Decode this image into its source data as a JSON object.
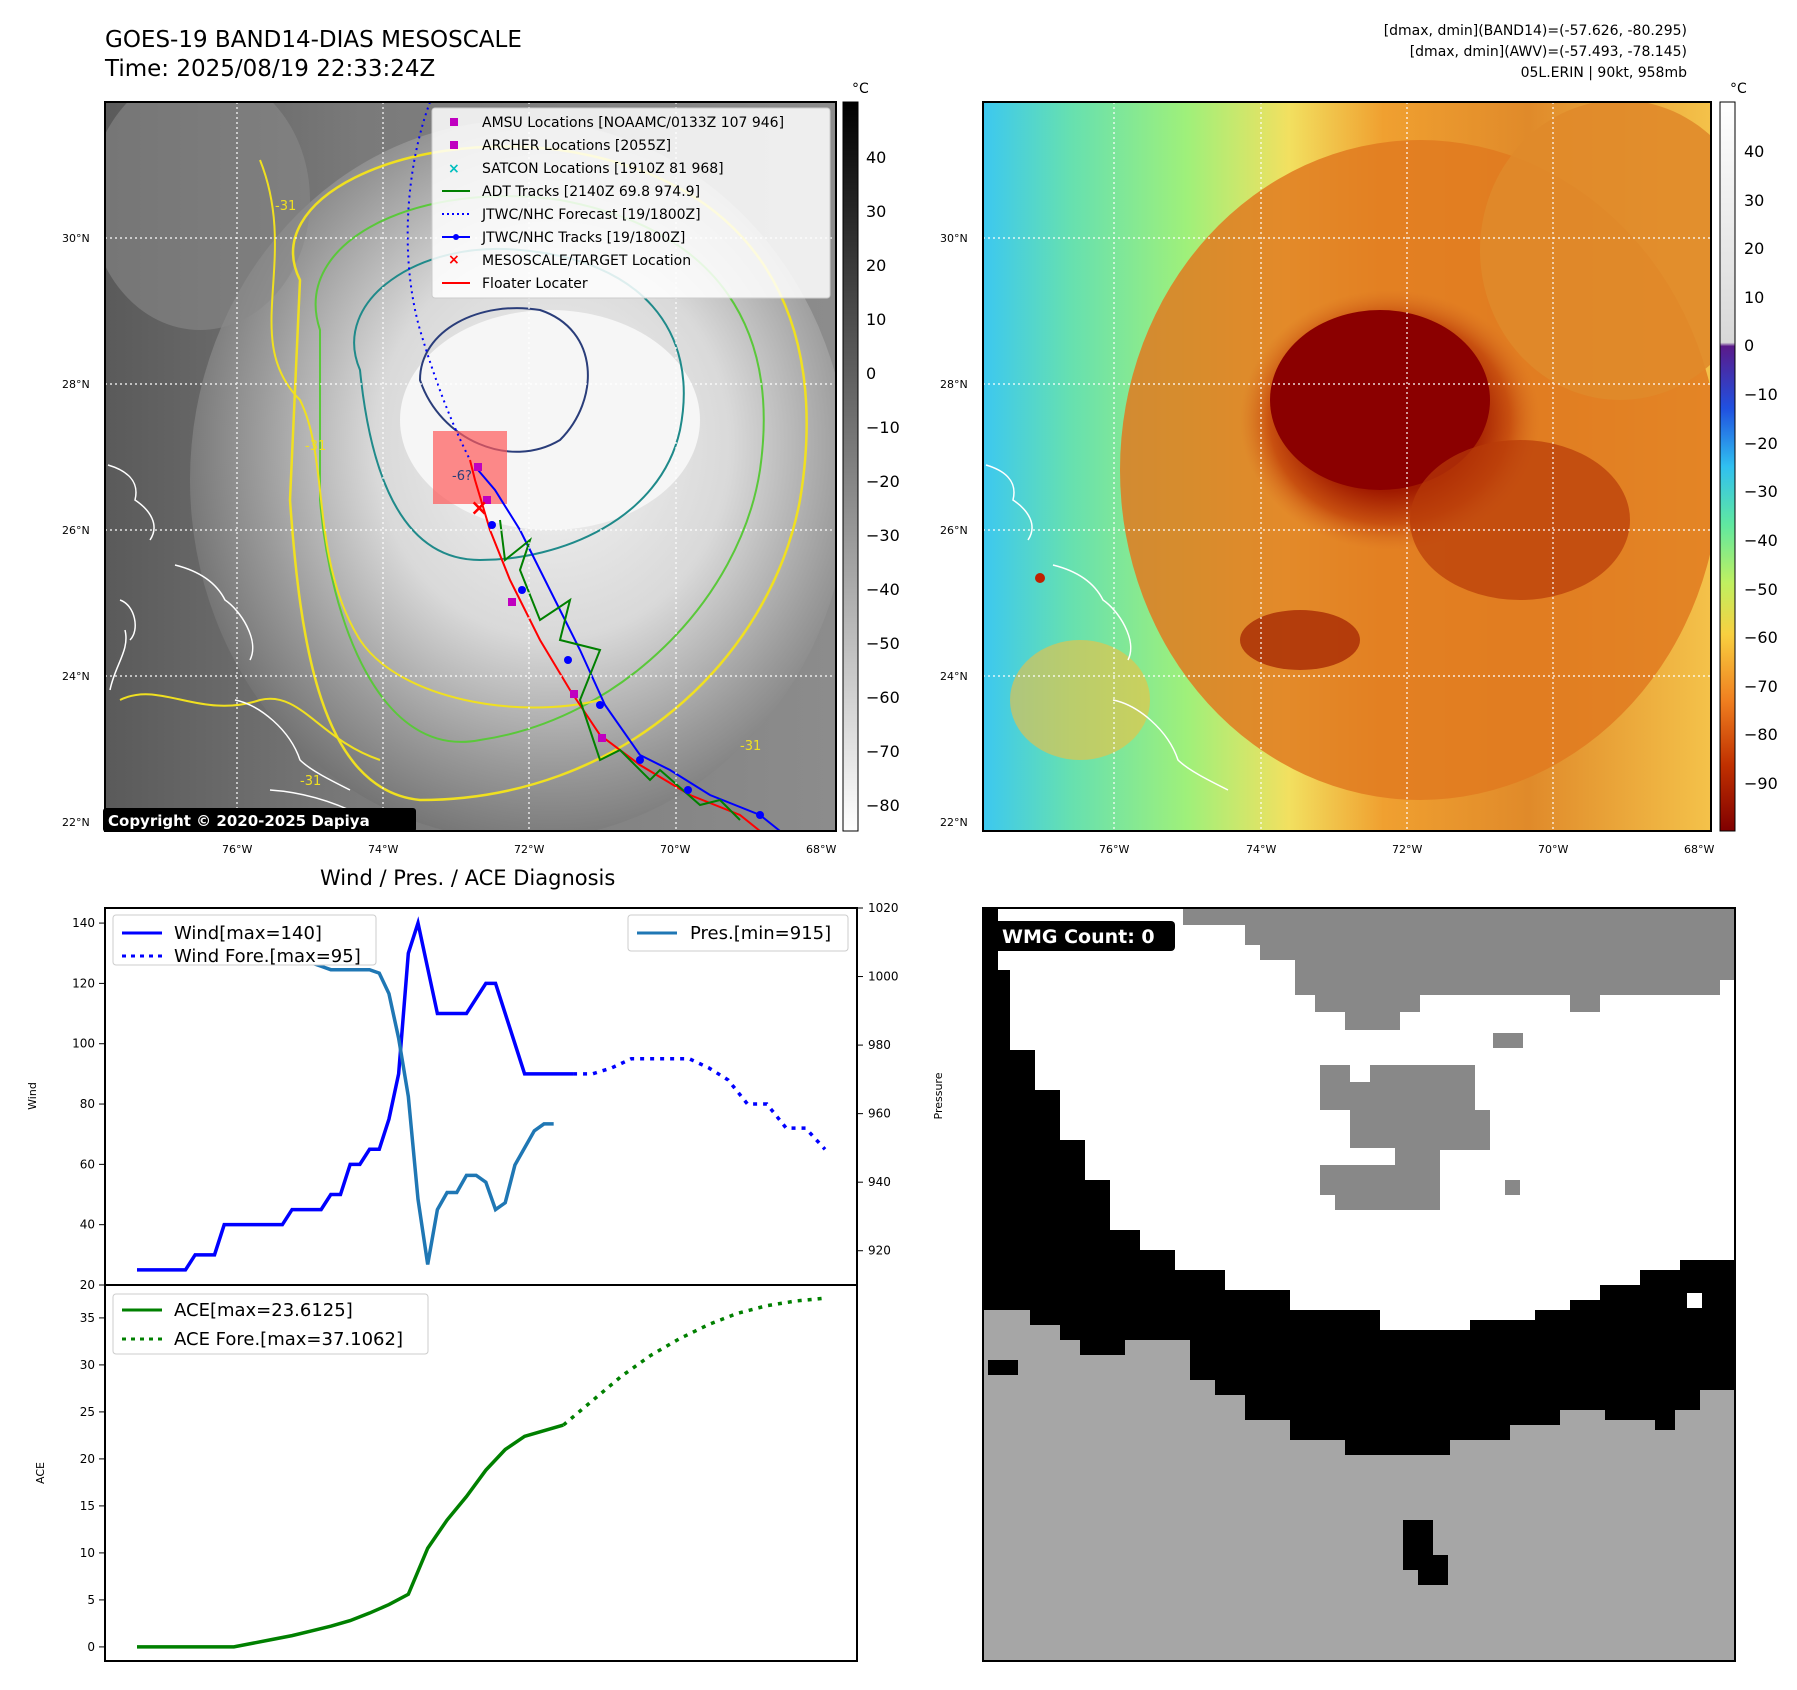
{
  "header": {
    "title": "GOES-19 BAND14-DIAS MESOSCALE",
    "time": "Time: 2025/08/19 22:33:24Z",
    "dmax_band14": "[dmax, dmin](BAND14)=(-57.626, -80.295)",
    "dmax_awv": "[dmax, dmin](AWV)=(-57.493, -78.145)",
    "storm": "05L.ERIN | 90kt, 958mb"
  },
  "map": {
    "lat_labels": [
      "30°N",
      "28°N",
      "26°N",
      "24°N",
      "22°N"
    ],
    "lon_labels": [
      "76°W",
      "74°W",
      "72°W",
      "70°W",
      "68°W"
    ],
    "copyright": "Copyright © 2020-2025 Dapiya",
    "colorbar_unit": "°C",
    "colorbar1_ticks": [
      "40",
      "30",
      "20",
      "10",
      "0",
      "−10",
      "−20",
      "−30",
      "−40",
      "−50",
      "−60",
      "−70",
      "−80"
    ],
    "colorbar2_ticks": [
      "40",
      "30",
      "20",
      "10",
      "0",
      "−10",
      "−20",
      "−30",
      "−40",
      "−50",
      "−60",
      "−70",
      "−80",
      "−90"
    ],
    "legend": [
      {
        "label": "AMSU Locations [NOAAMC/0133Z 107 946]",
        "color": "#c000c0",
        "marker": "square"
      },
      {
        "label": "ARCHER Locations [2055Z]",
        "color": "#c000c0",
        "marker": "square"
      },
      {
        "label": "SATCON Locations [1910Z 81 968]",
        "color": "#00bfbf",
        "marker": "x"
      },
      {
        "label": "ADT Tracks [2140Z 69.8 974.9]",
        "color": "#008000",
        "marker": "line"
      },
      {
        "label": "JTWC/NHC Forecast [19/1800Z]",
        "color": "#0000ff",
        "marker": "dotted"
      },
      {
        "label": "JTWC/NHC Tracks [19/1800Z]",
        "color": "#0000ff",
        "marker": "line-dot"
      },
      {
        "label": "MESOSCALE/TARGET Location",
        "color": "#ff0000",
        "marker": "x"
      },
      {
        "label": "Floater Locater",
        "color": "#ff0000",
        "marker": "line"
      }
    ],
    "contour_labels": [
      "-31",
      "-31",
      "-31",
      "-6?",
      "-31"
    ]
  },
  "wind_chart_title": "Wind / Pres. / ACE Diagnosis",
  "wmg": {
    "label": "WMG Count: 0"
  },
  "chart_data": [
    {
      "type": "line",
      "ylabel": "Wind",
      "ylabel_right": "Pressure",
      "ylim": [
        20,
        145
      ],
      "y2lim": [
        910,
        1020
      ],
      "yticks": [
        "140",
        "120",
        "100",
        "80",
        "60",
        "40",
        "20"
      ],
      "y2ticks": [
        "1020",
        "1000",
        "980",
        "960",
        "940",
        "920"
      ],
      "series": [
        {
          "name": "Wind[max=140]",
          "color": "#0000ff",
          "style": "solid",
          "x": [
            0,
            1,
            2,
            3,
            4,
            5,
            6,
            7,
            8,
            9,
            10,
            11,
            12,
            13,
            14,
            15,
            16,
            17,
            18,
            19,
            20,
            21,
            22,
            23,
            24,
            25,
            26,
            27,
            28,
            29,
            30,
            31,
            32,
            33,
            34,
            35,
            36,
            37,
            38,
            39,
            40,
            41,
            42,
            43,
            44,
            45
          ],
          "values": [
            25,
            25,
            25,
            25,
            25,
            25,
            30,
            30,
            30,
            40,
            40,
            40,
            40,
            40,
            40,
            40,
            45,
            45,
            45,
            45,
            50,
            50,
            60,
            60,
            65,
            65,
            75,
            90,
            130,
            140,
            125,
            110,
            110,
            110,
            110,
            115,
            120,
            120,
            110,
            100,
            90,
            90,
            90,
            90,
            90,
            90
          ]
        },
        {
          "name": "Wind Fore.[max=95]",
          "color": "#0000ff",
          "style": "dotted",
          "x": [
            45,
            47,
            49,
            51,
            53,
            55,
            57,
            59,
            61,
            63,
            65,
            67,
            69,
            71
          ],
          "values": [
            90,
            90,
            92,
            95,
            95,
            95,
            95,
            92,
            88,
            80,
            80,
            72,
            72,
            65
          ]
        },
        {
          "name": "Pres.[min=915]",
          "color": "#1f77b4",
          "style": "solid",
          "x": [
            0,
            1,
            2,
            3,
            4,
            5,
            6,
            7,
            8,
            9,
            10,
            11,
            12,
            13,
            14,
            15,
            16,
            17,
            18,
            19,
            20,
            21,
            22,
            23,
            24,
            25,
            26,
            27,
            28,
            29,
            30,
            31,
            32,
            33,
            34,
            35,
            36,
            37,
            38,
            39,
            40,
            41,
            42,
            43
          ],
          "values": [
            1015,
            1015,
            1011,
            1010,
            1009,
            1009,
            1009,
            1009,
            1008,
            1008,
            1007,
            1007,
            1006,
            1006,
            1005,
            1005,
            1005,
            1005,
            1004,
            1003,
            1002,
            1002,
            1002,
            1002,
            1002,
            1001,
            995,
            982,
            965,
            935,
            916,
            932,
            937,
            937,
            942,
            942,
            940,
            932,
            934,
            945,
            950,
            955,
            957,
            957
          ]
        }
      ]
    },
    {
      "type": "line",
      "ylabel": "ACE",
      "ylim": [
        -1.5,
        38.5
      ],
      "yticks": [
        "35",
        "30",
        "25",
        "20",
        "15",
        "10",
        "5",
        "0"
      ],
      "series": [
        {
          "name": "ACE[max=23.6125]",
          "color": "#008000",
          "style": "solid",
          "x": [
            0,
            2,
            4,
            6,
            8,
            10,
            12,
            14,
            16,
            18,
            20,
            22,
            24,
            26,
            28,
            30,
            32,
            34,
            36,
            38,
            40,
            42,
            44
          ],
          "values": [
            0,
            0,
            0,
            0,
            0,
            0,
            0.4,
            0.8,
            1.2,
            1.7,
            2.2,
            2.8,
            3.6,
            4.5,
            5.6,
            10.5,
            13.5,
            16,
            18.8,
            21,
            22.4,
            23,
            23.6
          ]
        },
        {
          "name": "ACE Fore.[max=37.1062]",
          "color": "#008000",
          "style": "dotted",
          "x": [
            44,
            47,
            50,
            53,
            56,
            59,
            62,
            65,
            68,
            71
          ],
          "values": [
            23.6,
            26.2,
            28.8,
            31,
            32.8,
            34.3,
            35.5,
            36.3,
            36.8,
            37.1
          ]
        }
      ]
    }
  ]
}
